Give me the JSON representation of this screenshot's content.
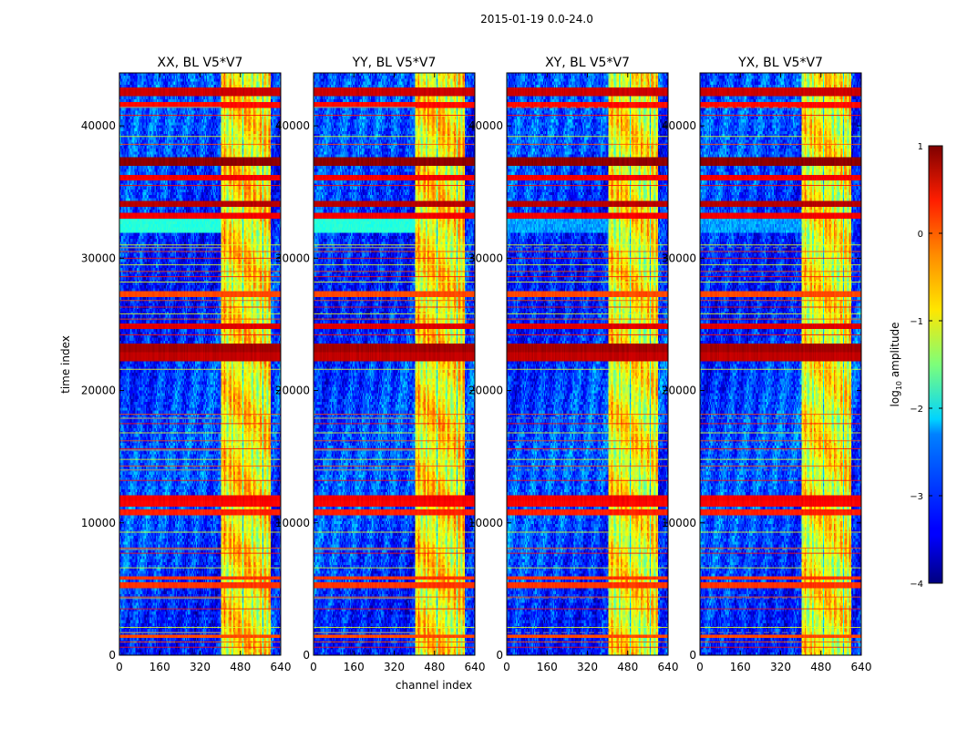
{
  "chart_data": {
    "type": "heatmap",
    "suptitle": "2015-01-19 0.0-24.0",
    "xlabel": "channel index",
    "ylabel": "time index",
    "xlim": [
      0,
      640
    ],
    "ylim": [
      0,
      44000
    ],
    "xticks": [
      0,
      160,
      320,
      480,
      640
    ],
    "yticks": [
      0,
      10000,
      20000,
      30000,
      40000
    ],
    "panels": [
      {
        "title": "XX, BL V5*V7",
        "pol": "XX"
      },
      {
        "title": "YY, BL V5*V7",
        "pol": "YY"
      },
      {
        "title": "XY, BL V5*V7",
        "pol": "XY"
      },
      {
        "title": "YX, BL V5*V7",
        "pol": "YX"
      }
    ],
    "colorbar": {
      "label": "log10 amplitude",
      "label_main": "log",
      "label_sub": "10",
      "label_rest": " amplitude",
      "range": [
        -4,
        1
      ],
      "ticks": [
        1,
        0,
        -1,
        -2,
        -3,
        -4
      ],
      "tick_labels": [
        "1",
        "0",
        "−1",
        "−2",
        "−3",
        "−4"
      ],
      "colormap": "jet"
    },
    "band": {
      "channel_start": 405,
      "channel_end": 600,
      "bright_columns": [
        418,
        440,
        455,
        475,
        500,
        515,
        535,
        560,
        578,
        595
      ],
      "dark_columns": [
        428,
        448,
        490,
        528,
        548,
        570,
        588
      ]
    },
    "artifacts": {
      "saturated_rows": [
        {
          "t": 42600,
          "h": 380,
          "v": 0.7
        },
        {
          "t": 41600,
          "h": 150,
          "v": 0.4
        },
        {
          "t": 37300,
          "h": 260,
          "v": 1.0
        },
        {
          "t": 36100,
          "h": 170,
          "v": 0.5
        },
        {
          "t": 34100,
          "h": 320,
          "v": 0.8
        },
        {
          "t": 33200,
          "h": 180,
          "v": 0.5
        },
        {
          "t": 27300,
          "h": 230,
          "v": 0.1
        },
        {
          "t": 24900,
          "h": 330,
          "v": 0.6
        },
        {
          "t": 23200,
          "h": 460,
          "v": 0.9
        },
        {
          "t": 22500,
          "h": 380,
          "v": 0.75
        },
        {
          "t": 11900,
          "h": 170,
          "v": 0.5
        },
        {
          "t": 11500,
          "h": 170,
          "v": 0.45
        },
        {
          "t": 10800,
          "h": 120,
          "v": 0.3
        },
        {
          "t": 5800,
          "h": 110,
          "v": 0.2
        },
        {
          "t": 5300,
          "h": 110,
          "v": 0.2
        },
        {
          "t": 1400,
          "h": 110,
          "v": 0.1
        }
      ],
      "thin_lines": [
        40800,
        39200,
        38600,
        35500,
        31000,
        30500,
        30000,
        29500,
        29000,
        28600,
        28200,
        26800,
        26300,
        25800,
        25400,
        24200,
        21600,
        18200,
        17500,
        16800,
        16200,
        15600,
        14800,
        14300,
        13200,
        9300,
        8100,
        7700,
        6600,
        4400,
        3500,
        2100,
        1000,
        600
      ],
      "cyan_band": {
        "from": 31800,
        "to": 33300,
        "v": -1.95
      },
      "gray_lines": [
        41400,
        30800,
        17900,
        15500,
        14000,
        8000,
        4300,
        1700
      ]
    }
  }
}
